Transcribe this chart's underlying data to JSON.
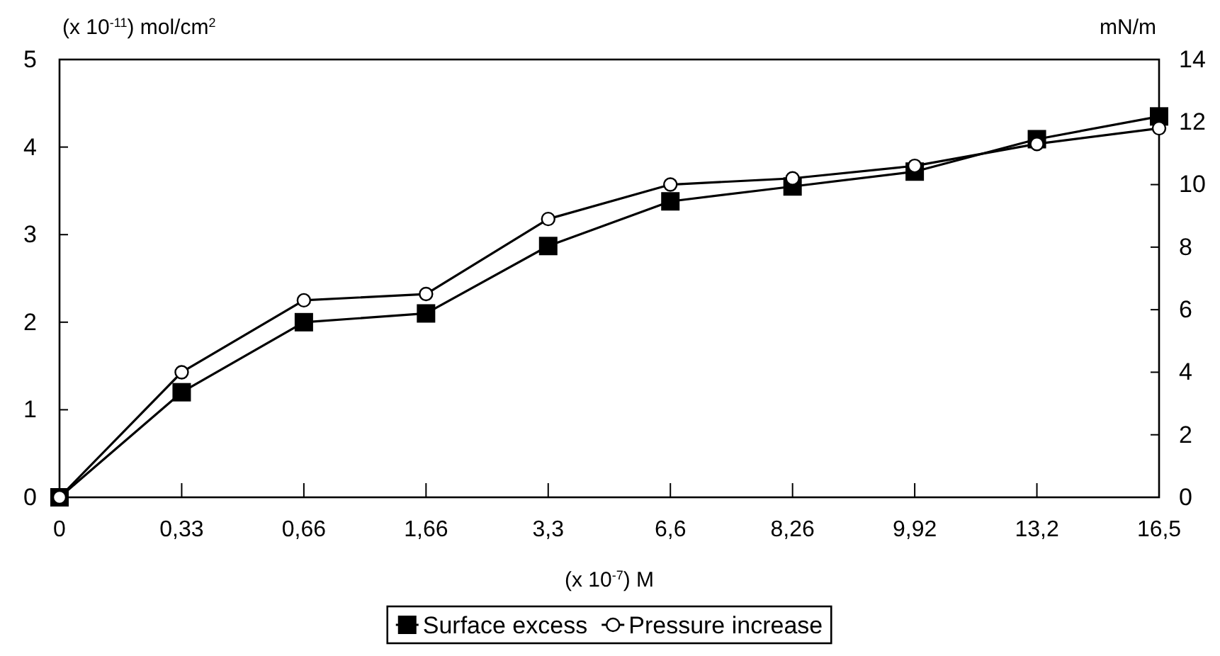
{
  "chart_data": {
    "type": "line",
    "categories": [
      "0",
      "0,33",
      "0,66",
      "1,66",
      "3,3",
      "6,6",
      "8,26",
      "9,92",
      "13,2",
      "16,5"
    ],
    "series": [
      {
        "name": "Surface excess",
        "color": "#000000",
        "marker": "square",
        "values": [
          0,
          1.2,
          2.0,
          2.1,
          2.87,
          3.38,
          3.55,
          3.72,
          4.09,
          4.35
        ]
      },
      {
        "name": "Pressure increase",
        "color": "#000000",
        "marker": "circle",
        "axis": "y2",
        "values": [
          0,
          4.0,
          6.3,
          6.5,
          8.9,
          10.0,
          10.2,
          10.6,
          11.3,
          11.8
        ]
      }
    ],
    "ylabel": "(x 10$^{-11}$) mol/cm$^{2}$",
    "y2label": "mN/m",
    "xlabel": "(x 10$^{-7}$) M",
    "ylim": [
      0,
      5
    ],
    "yticks": [
      0,
      1,
      2,
      3,
      4,
      5
    ],
    "y2lim": [
      0,
      14
    ],
    "y2ticks": [
      0,
      2,
      4,
      6,
      8,
      10,
      12,
      14
    ],
    "grid": false,
    "legend": "bottom",
    "line_style": "solid"
  }
}
